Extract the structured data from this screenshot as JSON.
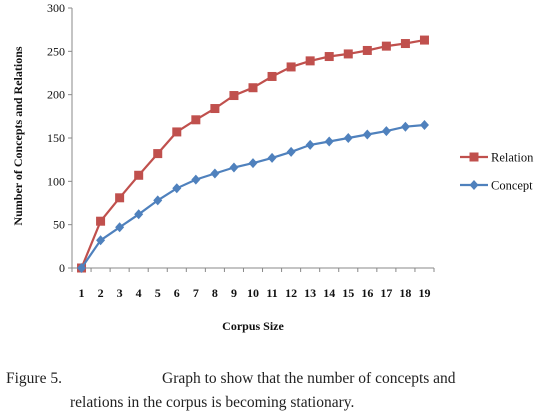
{
  "chart_data": {
    "type": "line",
    "x": [
      1,
      2,
      3,
      4,
      5,
      6,
      7,
      8,
      9,
      10,
      11,
      12,
      13,
      14,
      15,
      16,
      17,
      18,
      19
    ],
    "xlabel": "Corpus Size",
    "ylabel": "Number of Concepts and Relations",
    "ylim": [
      0,
      300
    ],
    "yticks": [
      0,
      50,
      100,
      150,
      200,
      250,
      300
    ],
    "grid": false,
    "legend_position": "right",
    "series": [
      {
        "name": "Relation",
        "color": "#c0504d",
        "marker": "square",
        "values": [
          0,
          54,
          81,
          107,
          132,
          157,
          171,
          184,
          199,
          208,
          221,
          232,
          239,
          244,
          247,
          251,
          256,
          259,
          263
        ]
      },
      {
        "name": "Concept",
        "color": "#4f81bd",
        "marker": "diamond",
        "values": [
          0,
          32,
          47,
          62,
          78,
          92,
          102,
          109,
          116,
          121,
          127,
          134,
          142,
          146,
          150,
          154,
          158,
          163,
          165
        ]
      }
    ]
  },
  "caption": {
    "label": "Figure 5.",
    "line1": "Graph to show that the number of concepts and",
    "line2": "relations in the corpus is becoming stationary."
  }
}
